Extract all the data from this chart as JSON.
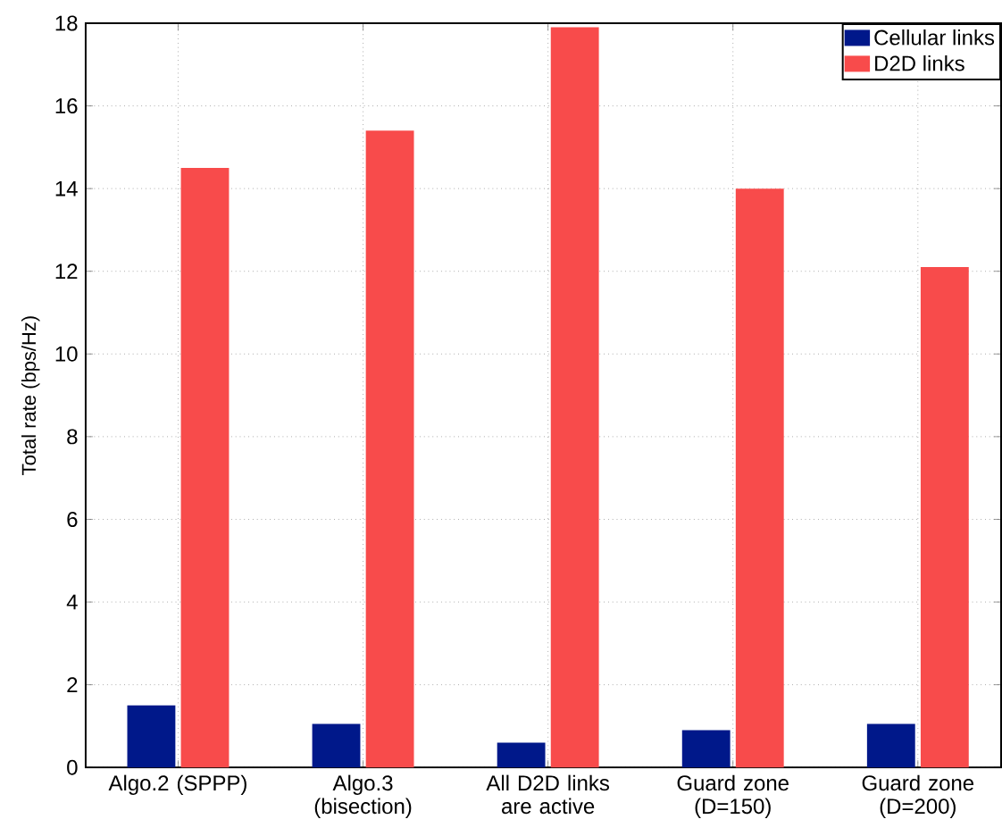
{
  "chart_data": {
    "type": "bar",
    "ylabel": "Total rate (bps/Hz)",
    "categories": [
      "Algo.2 (SPPP)",
      "Algo.3 (bisection)",
      "All D2D links are active",
      "Guard zone (D=150)",
      "Guard zone (D=200)"
    ],
    "series": [
      {
        "name": "Cellular links",
        "color": "#00188a",
        "values": [
          1.5,
          1.05,
          0.6,
          0.9,
          1.05
        ]
      },
      {
        "name": "D2D links",
        "color": "#f84b4b",
        "values": [
          14.5,
          15.4,
          17.9,
          14.0,
          12.1
        ]
      }
    ],
    "ylim": [
      0,
      18
    ],
    "yticks": [
      0,
      2,
      4,
      6,
      8,
      10,
      12,
      14,
      16,
      18
    ],
    "grid": true,
    "legend": "top right"
  }
}
